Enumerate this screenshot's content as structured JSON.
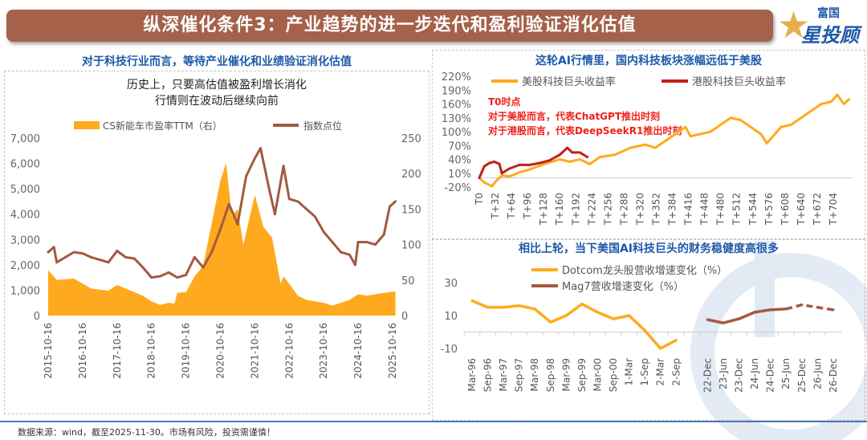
{
  "header": {
    "title": "纵深催化条件3：产业趋势的进一步迭代和盈利验证消化估值",
    "logo_text_top": "富国",
    "logo_text_main": "星投顾"
  },
  "left": {
    "subtitle": "对于科技行业而言，等待产业催化和业绩验证消化估值"
  },
  "footer": {
    "source": "数据来源：wind，截至2025-11-30。市场有风险，投资需谨慎！"
  },
  "colors": {
    "orange": "#FFAA1E",
    "brown": "#A35A40",
    "red": "#C0201A",
    "blue": "#1E5AA8",
    "annotation": "#F0201A"
  },
  "chart_data": [
    {
      "id": "nev",
      "type": "area+line",
      "title_lines": [
        "历史上，只要高估值被盈利增长消化",
        "行情则在波动后继续向前"
      ],
      "legend": [
        "CS新能车市盈率TTM（右）",
        "指数点位"
      ],
      "xticks": [
        "2015-10-16",
        "2016-10-16",
        "2017-10-16",
        "2018-10-16",
        "2019-10-16",
        "2020-10-16",
        "2021-10-16",
        "2022-10-16",
        "2023-10-16",
        "2024-10-16",
        "2025-10-16"
      ],
      "yleft": {
        "range": [
          0,
          7000
        ],
        "ticks": [
          "0",
          "1,000",
          "2,000",
          "3,000",
          "4,000",
          "5,000",
          "6,000",
          "7,000"
        ]
      },
      "yright": {
        "range": [
          0,
          250
        ],
        "ticks": [
          "0",
          "50",
          "100",
          "150",
          "200",
          "250"
        ]
      },
      "series": [
        {
          "name": "CS新能车市盈率TTM（右）",
          "type": "area",
          "axis": "right",
          "x": [
            "2015-10",
            "2016-01",
            "2016-07",
            "2016-10",
            "2017-01",
            "2017-07",
            "2017-10",
            "2018-01",
            "2018-07",
            "2018-10",
            "2019-01",
            "2019-04",
            "2019-06",
            "2019-07",
            "2019-10",
            "2020-01",
            "2020-04",
            "2020-07",
            "2020-10",
            "2020-12",
            "2021-02",
            "2021-04",
            "2021-06",
            "2021-10",
            "2022-01",
            "2022-04",
            "2022-07",
            "2022-08",
            "2022-10",
            "2023-01",
            "2023-04",
            "2023-10",
            "2024-01",
            "2024-04",
            "2024-07",
            "2024-10",
            "2025-01",
            "2025-04",
            "2025-07",
            "2025-11"
          ],
          "values": [
            64,
            50,
            52,
            45,
            38,
            35,
            43,
            38,
            28,
            20,
            15,
            18,
            17,
            32,
            33,
            55,
            70,
            130,
            190,
            215,
            140,
            150,
            100,
            170,
            125,
            110,
            45,
            55,
            45,
            28,
            22,
            18,
            14,
            18,
            22,
            30,
            28,
            30,
            32,
            34
          ]
        },
        {
          "name": "指数点位",
          "type": "line",
          "axis": "left",
          "x": [
            "2015-10",
            "2015-12",
            "2016-01",
            "2016-04",
            "2016-07",
            "2016-10",
            "2017-01",
            "2017-04",
            "2017-07",
            "2017-10",
            "2018-01",
            "2018-04",
            "2018-07",
            "2018-10",
            "2019-01",
            "2019-04",
            "2019-07",
            "2019-10",
            "2020-01",
            "2020-04",
            "2020-07",
            "2020-10",
            "2021-01",
            "2021-04",
            "2021-07",
            "2021-10",
            "2021-12",
            "2022-03",
            "2022-05",
            "2022-08",
            "2022-10",
            "2023-01",
            "2023-04",
            "2023-07",
            "2023-10",
            "2024-01",
            "2024-04",
            "2024-07",
            "2024-09",
            "2024-10",
            "2025-01",
            "2025-04",
            "2025-07",
            "2025-09",
            "2025-11"
          ],
          "values": [
            2500,
            2700,
            2100,
            2300,
            2500,
            2450,
            2300,
            2200,
            2100,
            2550,
            2300,
            2250,
            1900,
            1500,
            1550,
            1700,
            1500,
            1600,
            2300,
            1900,
            2500,
            3400,
            4400,
            3600,
            5500,
            6200,
            6600,
            5000,
            4000,
            5900,
            4600,
            4500,
            4200,
            3900,
            3300,
            2900,
            2500,
            2400,
            2000,
            2900,
            2900,
            2800,
            3200,
            4300,
            4500
          ]
        }
      ]
    },
    {
      "id": "ai",
      "type": "line",
      "subtitle": "这轮AI行情里，国内科技板块涨幅远低于美股",
      "annotation": [
        "T0时点",
        "对于美股而言，代表ChatGPT推出时刻",
        "对于港股而言，代表DeepSeekR1推出时刻"
      ],
      "xticks": [
        "T0",
        "T+32",
        "T+64",
        "T+96",
        "T+128",
        "T+160",
        "T+192",
        "T+224",
        "T+256",
        "T+288",
        "T+320",
        "T+352",
        "T+384",
        "T+416",
        "T+448",
        "T+480",
        "T+512",
        "T+544",
        "T+576",
        "T+608",
        "T+640",
        "T+672",
        "T+704"
      ],
      "yrange": [
        -20,
        220
      ],
      "yticks": [
        "-20%",
        "10%",
        "40%",
        "70%",
        "100%",
        "130%",
        "160%",
        "190%",
        "220%"
      ],
      "series": [
        {
          "name": "美股科技巨头收益率",
          "color": "#FFAA1E",
          "x": [
            0,
            10,
            25,
            35,
            45,
            60,
            80,
            100,
            130,
            160,
            180,
            200,
            220,
            240,
            270,
            300,
            330,
            350,
            370,
            390,
            410,
            420,
            440,
            460,
            480,
            500,
            520,
            540,
            560,
            572,
            580,
            600,
            620,
            640,
            660,
            680,
            700,
            712,
            725,
            735
          ],
          "values": [
            0,
            -10,
            -18,
            -5,
            5,
            3,
            12,
            18,
            30,
            40,
            35,
            40,
            30,
            45,
            50,
            65,
            72,
            65,
            80,
            95,
            110,
            90,
            95,
            100,
            115,
            130,
            125,
            110,
            95,
            75,
            85,
            110,
            115,
            130,
            145,
            160,
            165,
            180,
            160,
            170
          ]
        },
        {
          "name": "港股科技巨头收益率",
          "color": "#C0201A",
          "x": [
            0,
            10,
            20,
            30,
            40,
            45,
            60,
            80,
            100,
            120,
            140,
            160,
            175,
            185,
            200,
            215
          ],
          "values": [
            0,
            25,
            32,
            35,
            30,
            10,
            20,
            28,
            28,
            32,
            38,
            50,
            65,
            55,
            55,
            45
          ]
        }
      ]
    },
    {
      "id": "rev",
      "type": "line",
      "subtitle": "相比上轮，当下美国AI科技巨头的财务稳健度高很多",
      "categories": [
        "Mar-96",
        "Sep-96",
        "Mar-97",
        "Sep-97",
        "Mar-98",
        "Sep-98",
        "Mar-99",
        "Sep-99",
        "Mar-00",
        "Sep-00",
        "1-Mar",
        "1-Sep",
        "2-Mar",
        "2-Sep",
        "",
        "22-Dec",
        "23-Jun",
        "23-Dec",
        "24-Jun",
        "24-Dec",
        "25-Jun",
        "25-Dec",
        "26-Jun",
        "26-Dec"
      ],
      "yrange": [
        -10,
        30
      ],
      "yticks": [
        "-10",
        "10",
        "30"
      ],
      "series": [
        {
          "name": "Dotcom龙头股营收增速变化（%）",
          "color": "#FFAA1E",
          "values": [
            19,
            15,
            15,
            16,
            14,
            6,
            10,
            17,
            12,
            8,
            10,
            1,
            -10,
            -5,
            null,
            null,
            null,
            null,
            null,
            null,
            null,
            null,
            null,
            null
          ]
        },
        {
          "name": "Mag7营收增速变化（%）",
          "color": "#A35A40",
          "dashed_from": "25-Jun",
          "values": [
            null,
            null,
            null,
            null,
            null,
            null,
            null,
            null,
            null,
            null,
            null,
            null,
            null,
            null,
            null,
            7.5,
            5.5,
            8,
            12,
            13.5,
            14,
            16.5,
            15,
            13.5
          ]
        }
      ]
    }
  ]
}
